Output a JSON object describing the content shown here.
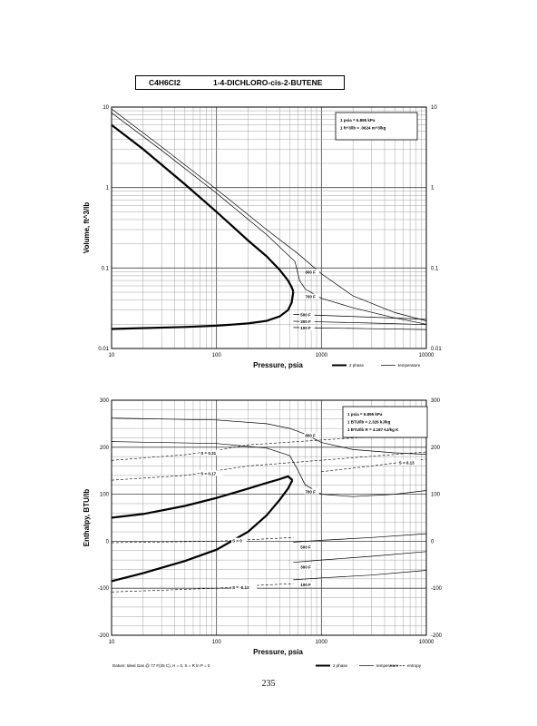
{
  "header": {
    "formula": "C4H6Cl2",
    "compound": "1-4-DICHLORO-cis-2-BUTENE"
  },
  "page_number": "235",
  "footer_note": "Datum: Ideal Gas @ 77 F(25 C), H = 0, S = R ln P = 0",
  "chart_data": [
    {
      "type": "line",
      "xlabel": "Pressure,  psia",
      "ylabel": "Volume,  ft^3/lb",
      "xscale": "log",
      "yscale": "log",
      "xlim": [
        10,
        10000
      ],
      "ylim": [
        0.01,
        10
      ],
      "x_ticks": [
        "10",
        "100",
        "1000",
        "10000"
      ],
      "y_ticks_left": [
        "10",
        "1",
        "0.1",
        "0.01"
      ],
      "y_ticks_right": [
        "10",
        "1",
        "0.1",
        "0.01"
      ],
      "notes": [
        "1 psia  =  6.895 kPa",
        "1 ft^3/lb  =  .0624 m^3/kg"
      ],
      "legend": [
        {
          "label": "2 phase",
          "style": "thick"
        },
        {
          "label": "temperature",
          "style": "thin"
        }
      ],
      "grid": true,
      "series": [
        {
          "role": "saturated vapor",
          "style": "thick",
          "x": [
            10,
            20,
            50,
            100,
            200,
            300,
            400,
            480,
            520,
            540
          ],
          "y": [
            6.0,
            3.0,
            1.1,
            0.5,
            0.22,
            0.14,
            0.095,
            0.07,
            0.058,
            0.051
          ]
        },
        {
          "role": "saturated liquid",
          "style": "thick",
          "x": [
            10,
            50,
            100,
            200,
            300,
            400,
            480,
            520,
            540
          ],
          "y": [
            0.0175,
            0.0185,
            0.0192,
            0.0205,
            0.022,
            0.025,
            0.03,
            0.037,
            0.051
          ]
        },
        {
          "label": "800 F",
          "style": "thin",
          "x": [
            10,
            30,
            100,
            300,
            600,
            1000,
            2000,
            5000,
            10000
          ],
          "y": [
            9.5,
            3.2,
            0.95,
            0.3,
            0.15,
            0.085,
            0.045,
            0.028,
            0.022
          ]
        },
        {
          "label": "700 F",
          "style": "thin",
          "x": [
            10,
            30,
            100,
            300,
            560,
            620,
            700,
            1000,
            2000,
            5000,
            10000
          ],
          "y": [
            8.5,
            2.9,
            0.85,
            0.26,
            0.12,
            0.07,
            0.055,
            0.042,
            0.032,
            0.024,
            0.02
          ]
        },
        {
          "label": "500 F",
          "style": "thin",
          "x": [
            540,
            1000,
            3000,
            10000
          ],
          "y": [
            0.0265,
            0.0258,
            0.0245,
            0.023
          ]
        },
        {
          "label": "300 F",
          "style": "thin",
          "x": [
            540,
            1000,
            3000,
            10000
          ],
          "y": [
            0.0218,
            0.0214,
            0.0207,
            0.0198
          ]
        },
        {
          "label": "100 F",
          "style": "thin",
          "x": [
            540,
            1000,
            3000,
            10000
          ],
          "y": [
            0.0182,
            0.018,
            0.0176,
            0.0172
          ]
        }
      ]
    },
    {
      "type": "line",
      "xlabel": "Pressure,  psia",
      "ylabel": "Enthalpy,  BTU/lb",
      "xscale": "log",
      "yscale": "linear",
      "xlim": [
        10,
        10000
      ],
      "ylim": [
        -200,
        300
      ],
      "x_ticks": [
        "10",
        "100",
        "1000",
        "10000"
      ],
      "y_ticks_left": [
        "300",
        "200",
        "100",
        "0",
        "-100",
        "-200"
      ],
      "y_ticks_right": [
        "300",
        "200",
        "100",
        "0",
        "-100",
        "-200"
      ],
      "notes": [
        "1 psia  =  6.895 kPa",
        "1 BTU/lb  =  2.326 kJ/kg",
        "1 BTU/lb R  =  4.187 kJ/kg K"
      ],
      "legend": [
        {
          "label": "2 phase",
          "style": "thick"
        },
        {
          "label": "temperature",
          "style": "thin"
        },
        {
          "label": "entropy",
          "style": "dashed"
        }
      ],
      "grid": true,
      "series": [
        {
          "role": "saturated vapor",
          "style": "thick",
          "x": [
            10,
            20,
            50,
            100,
            200,
            300,
            400,
            480,
            530
          ],
          "y": [
            50,
            58,
            75,
            92,
            112,
            124,
            132,
            138,
            130
          ]
        },
        {
          "role": "saturated liquid",
          "style": "thick",
          "x": [
            10,
            20,
            50,
            100,
            200,
            300,
            400,
            480,
            530
          ],
          "y": [
            -85,
            -68,
            -42,
            -18,
            20,
            55,
            88,
            112,
            130
          ]
        },
        {
          "label": "800 F",
          "style": "thin",
          "x": [
            10,
            100,
            300,
            500,
            700,
            1000,
            2000,
            5000,
            10000
          ],
          "y": [
            262,
            258,
            250,
            240,
            228,
            210,
            195,
            188,
            185
          ]
        },
        {
          "label": "700 F",
          "style": "thin",
          "x": [
            10,
            100,
            300,
            500,
            600,
            700,
            1000,
            2000,
            5000,
            10000
          ],
          "y": [
            212,
            208,
            198,
            182,
            150,
            120,
            100,
            95,
            100,
            108
          ]
        },
        {
          "label": "500 F",
          "style": "thin",
          "x": [
            540,
            1000,
            3000,
            10000
          ],
          "y": [
            -2,
            2,
            8,
            16
          ]
        },
        {
          "label": "300 F",
          "style": "thin",
          "x": [
            540,
            1000,
            3000,
            10000
          ],
          "y": [
            -45,
            -40,
            -32,
            -22
          ]
        },
        {
          "label": "100 F",
          "style": "thin",
          "x": [
            540,
            1000,
            3000,
            10000
          ],
          "y": [
            -82,
            -78,
            -72,
            -62
          ]
        },
        {
          "label": "S = 0.31",
          "style": "dashed",
          "x": [
            10,
            50,
            100,
            200,
            10000
          ],
          "y": [
            172,
            184,
            193,
            205,
            230
          ]
        },
        {
          "label": "S = 0.17",
          "style": "dashed",
          "x": [
            10,
            50,
            100,
            200,
            10000
          ],
          "y": [
            130,
            140,
            150,
            160,
            190
          ]
        },
        {
          "label": "S = 0.13",
          "style": "dashed",
          "x": [
            1000,
            3000,
            10000
          ],
          "y": [
            148,
            160,
            175
          ]
        },
        {
          "label": "S = 0",
          "style": "dashed",
          "x": [
            10,
            100,
            200,
            540
          ],
          "y": [
            -3,
            0,
            3,
            8
          ]
        },
        {
          "label": "S = -0.13",
          "style": "dashed",
          "x": [
            10,
            100,
            200,
            540
          ],
          "y": [
            -108,
            -100,
            -95,
            -90
          ]
        }
      ]
    }
  ]
}
